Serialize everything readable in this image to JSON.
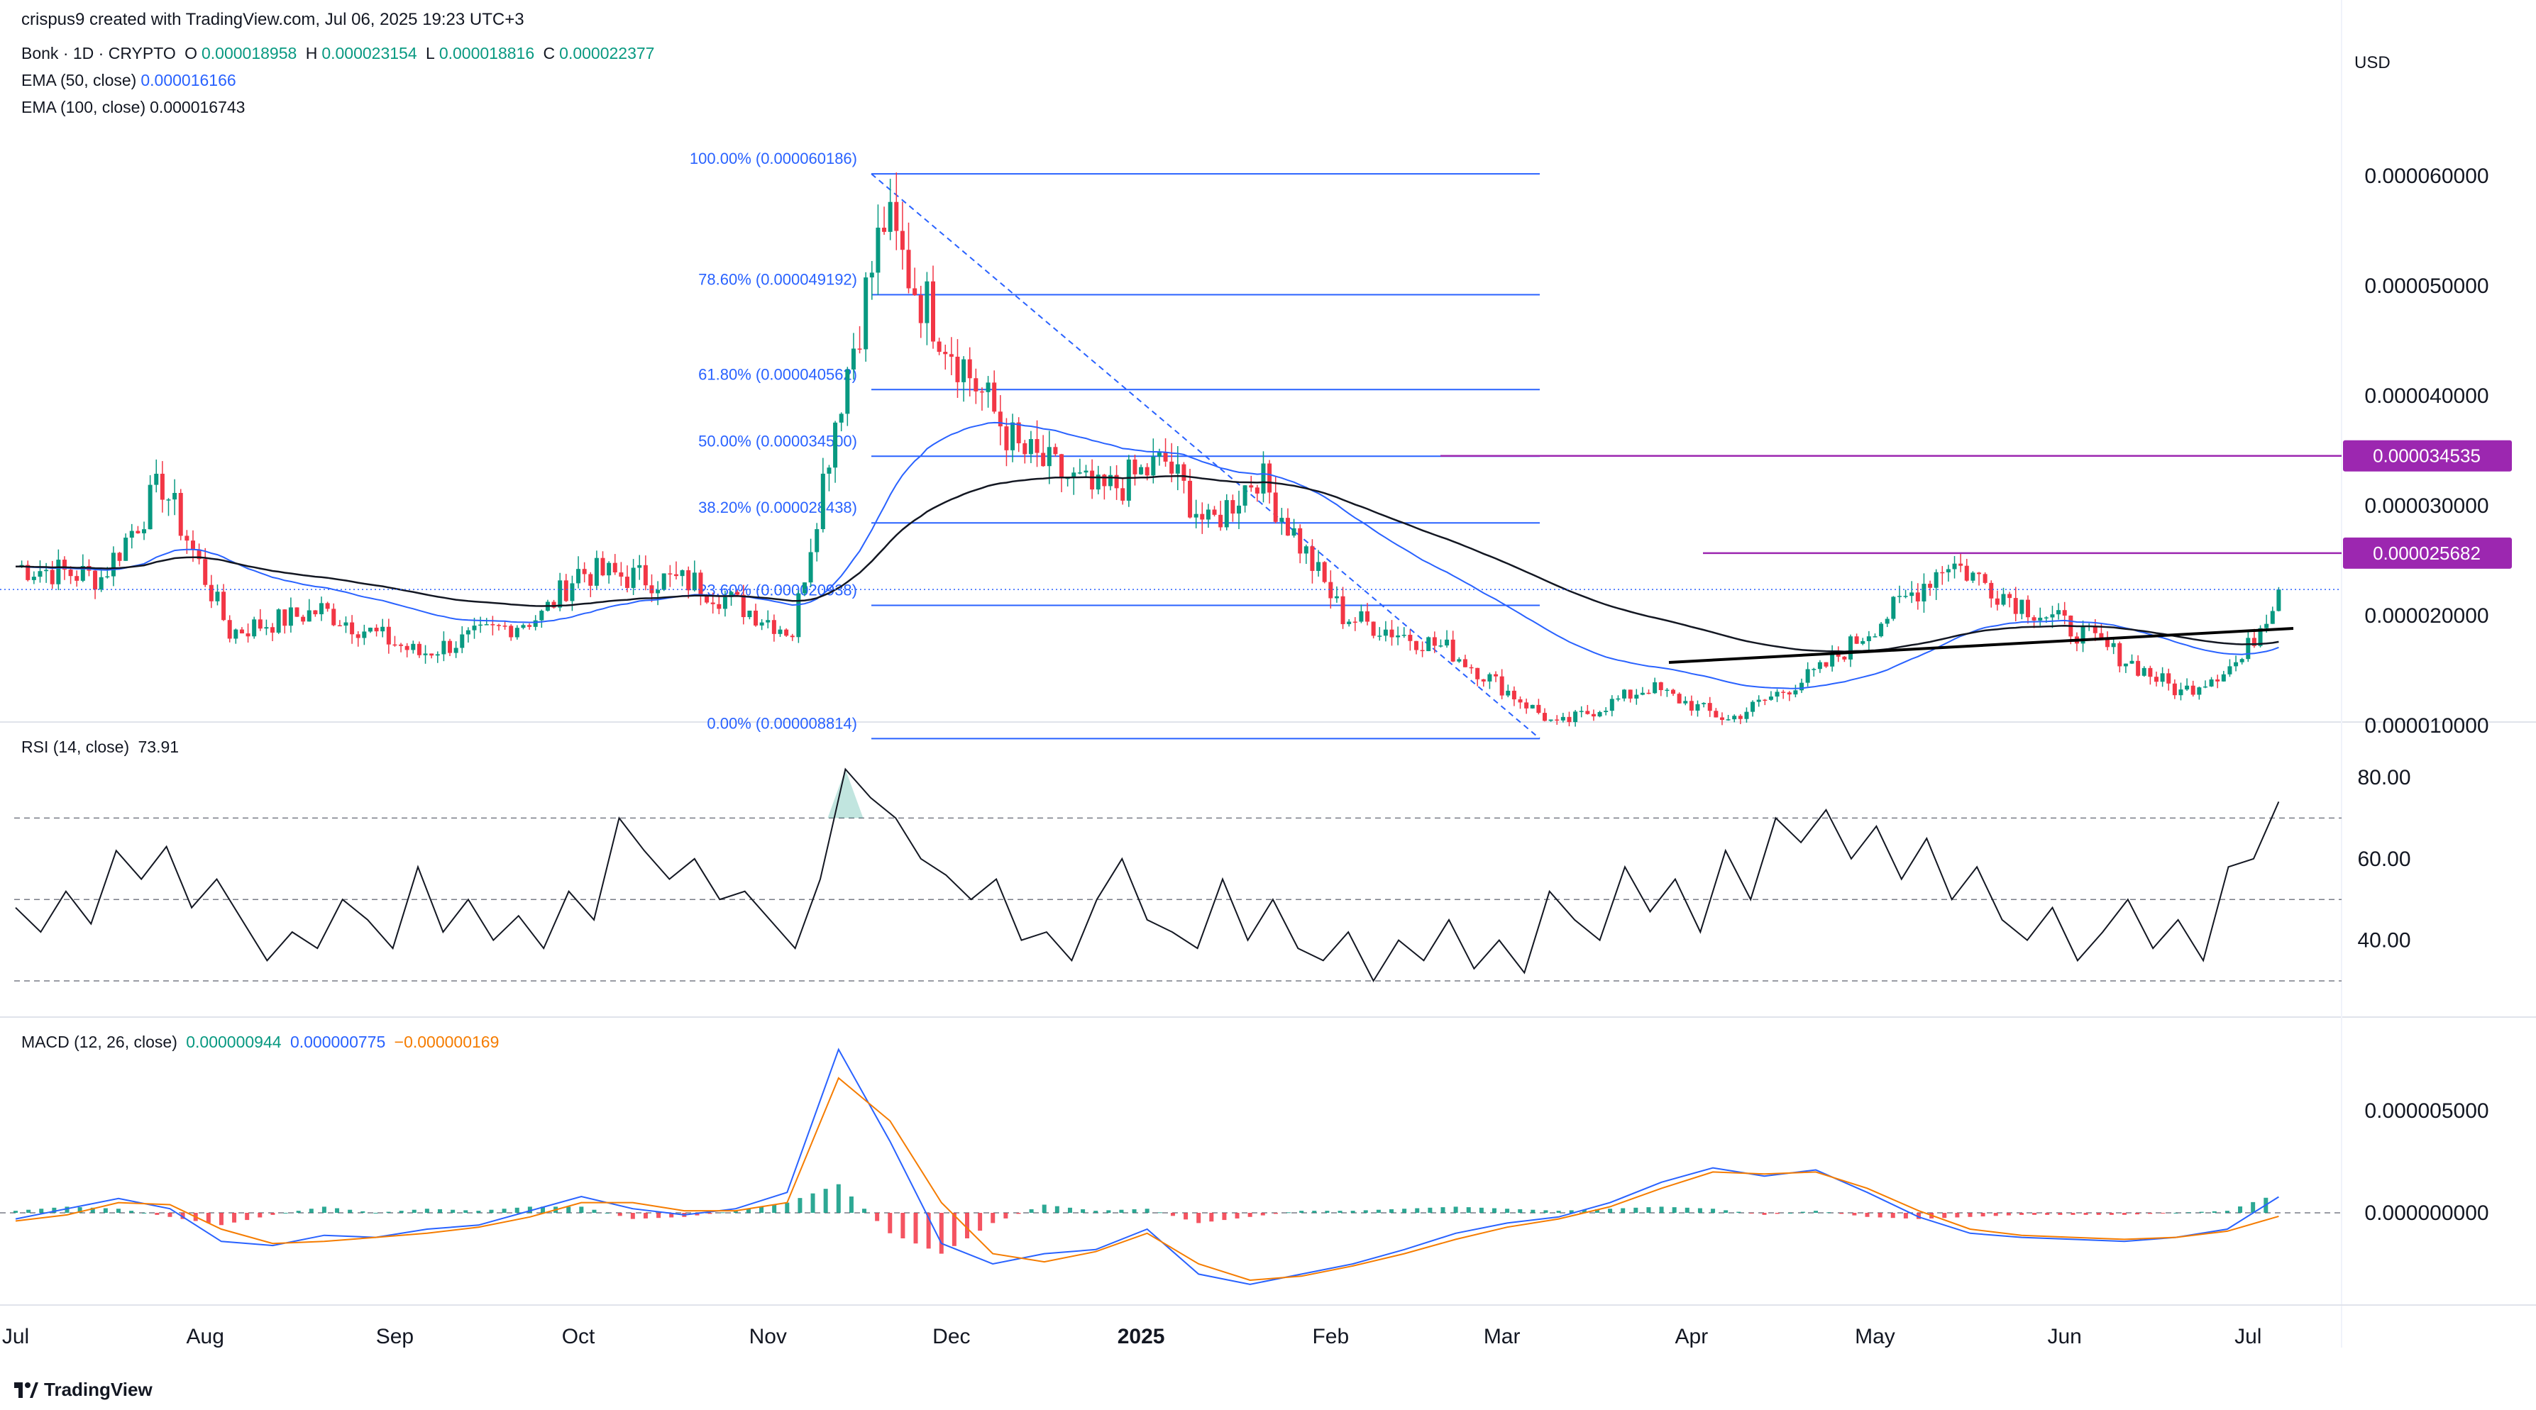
{
  "header": {
    "created_by": "crispus9 created with TradingView.com, Jul 06, 2025 19:23 UTC+3",
    "symbol": "Bonk · 1D · CRYPTO",
    "o_label": "O",
    "o_value": "0.000018958",
    "h_label": "H",
    "h_value": "0.000023154",
    "l_label": "L",
    "l_value": "0.000018816",
    "c_label": "C",
    "c_value": "0.000022377",
    "ema50_label": "EMA (50, close)",
    "ema50_value": "0.000016166",
    "ema100_label": "EMA (100, close)",
    "ema100_value": "0.000016743"
  },
  "rsi_legend": {
    "label": "RSI (14, close)",
    "value": "73.91"
  },
  "macd_legend": {
    "label": "MACD (12, 26, close)",
    "hist": "0.000000944",
    "macd": "0.000000775",
    "signal": "−0.000000169"
  },
  "currency": "USD",
  "footer": {
    "brand": "TradingView"
  },
  "colors": {
    "up": "#089981",
    "down": "#f23645",
    "ema50": "#2962ff",
    "ema100": "#131722",
    "fib": "#2962ff",
    "level_lines": "#9c27b0",
    "macd_signal": "#f57c00"
  },
  "chart_data": [
    {
      "type": "candlestick",
      "title": "Bonk · 1D · CRYPTO",
      "y_ticks": [
        "0.000060000",
        "0.000050000",
        "0.000040000",
        "0.000030000",
        "0.000020000",
        "0.000010000"
      ],
      "y_tick_values": [
        6e-05,
        5e-05,
        4e-05,
        3e-05,
        2e-05,
        1e-05
      ],
      "x_labels": [
        "Jul",
        "Aug",
        "Sep",
        "Oct",
        "Nov",
        "Dec",
        "2025",
        "Feb",
        "Mar",
        "Apr",
        "May",
        "Jun",
        "Jul"
      ],
      "approx_close_path": [
        {
          "date": "2024-07-01",
          "close": 2.45e-05
        },
        {
          "date": "2024-07-15",
          "close": 2.35e-05
        },
        {
          "date": "2024-07-25",
          "close": 3.2e-05
        },
        {
          "date": "2024-08-05",
          "close": 1.85e-05
        },
        {
          "date": "2024-08-20",
          "close": 2.05e-05
        },
        {
          "date": "2024-09-05",
          "close": 1.65e-05
        },
        {
          "date": "2024-09-25",
          "close": 2e-05
        },
        {
          "date": "2024-10-01",
          "close": 2.4e-05
        },
        {
          "date": "2024-10-20",
          "close": 2.3e-05
        },
        {
          "date": "2024-11-05",
          "close": 1.85e-05
        },
        {
          "date": "2024-11-12",
          "close": 3.8e-05
        },
        {
          "date": "2024-11-20",
          "close": 5.6e-05
        },
        {
          "date": "2024-11-25",
          "close": 5e-05
        },
        {
          "date": "2024-12-05",
          "close": 4.1e-05
        },
        {
          "date": "2024-12-12",
          "close": 3.5e-05
        },
        {
          "date": "2024-12-25",
          "close": 3.1e-05
        },
        {
          "date": "2025-01-05",
          "close": 3.4e-05
        },
        {
          "date": "2025-01-12",
          "close": 2.8e-05
        },
        {
          "date": "2025-01-20",
          "close": 3.3e-05
        },
        {
          "date": "2025-02-03",
          "close": 2e-05
        },
        {
          "date": "2025-02-20",
          "close": 1.7e-05
        },
        {
          "date": "2025-03-10",
          "close": 1e-05
        },
        {
          "date": "2025-03-25",
          "close": 1.35e-05
        },
        {
          "date": "2025-04-07",
          "close": 1.05e-05
        },
        {
          "date": "2025-04-22",
          "close": 1.5e-05
        },
        {
          "date": "2025-05-05",
          "close": 2.1e-05
        },
        {
          "date": "2025-05-13",
          "close": 2.5e-05
        },
        {
          "date": "2025-05-22",
          "close": 2.2e-05
        },
        {
          "date": "2025-06-05",
          "close": 1.8e-05
        },
        {
          "date": "2025-06-20",
          "close": 1.3e-05
        },
        {
          "date": "2025-06-30",
          "close": 1.6e-05
        },
        {
          "date": "2025-07-06",
          "close": 2.24e-05
        }
      ],
      "fibonacci": [
        {
          "label": "100.00% (0.000060186)",
          "value": 6.0186e-05
        },
        {
          "label": "78.60% (0.000049192)",
          "value": 4.9192e-05
        },
        {
          "label": "61.80% (0.000040562)",
          "value": 4.0562e-05
        },
        {
          "label": "50.00% (0.000034500)",
          "value": 3.45e-05
        },
        {
          "label": "38.20% (0.000028438)",
          "value": 2.8438e-05
        },
        {
          "label": "23.60% (0.000020938)",
          "value": 2.0938e-05
        },
        {
          "label": "0.00% (0.000008814)",
          "value": 8.814e-06
        }
      ],
      "levels": [
        {
          "label": "0.000034535",
          "value": 3.4535e-05
        },
        {
          "label": "0.000025682",
          "value": 2.5682e-05
        }
      ],
      "last_price": 2.2377e-05,
      "indicators": [
        "EMA (50, close)",
        "EMA (100, close)"
      ]
    },
    {
      "type": "line",
      "title": "RSI (14, close)",
      "y_ticks": [
        "80.00",
        "60.00",
        "40.00"
      ],
      "y_tick_values": [
        80,
        60,
        40
      ],
      "bands": [
        70,
        50,
        30
      ],
      "approx_values": [
        48,
        42,
        52,
        44,
        62,
        55,
        63,
        48,
        55,
        45,
        35,
        42,
        38,
        50,
        45,
        38,
        58,
        42,
        50,
        40,
        46,
        38,
        52,
        45,
        70,
        62,
        55,
        60,
        50,
        52,
        45,
        38,
        55,
        82,
        75,
        70,
        60,
        56,
        50,
        55,
        40,
        42,
        35,
        50,
        60,
        45,
        42,
        38,
        55,
        40,
        50,
        38,
        35,
        42,
        30,
        40,
        35,
        45,
        33,
        40,
        32,
        52,
        45,
        40,
        58,
        47,
        55,
        42,
        62,
        50,
        70,
        64,
        72,
        60,
        68,
        55,
        65,
        50,
        58,
        45,
        40,
        48,
        35,
        42,
        50,
        38,
        45,
        35,
        58,
        60,
        74
      ]
    },
    {
      "type": "line+histogram",
      "title": "MACD (12, 26, close)",
      "y_ticks": [
        "0.000005000",
        "0.000000000"
      ],
      "y_tick_values": [
        5e-06,
        0
      ],
      "series": [
        {
          "name": "MACD",
          "approx_values": [
            -3e-07,
            2e-07,
            7e-07,
            2e-07,
            -1.4e-06,
            -1.6e-06,
            -1.1e-06,
            -1.2e-06,
            -8e-07,
            -6e-07,
            1e-07,
            8e-07,
            2e-07,
            -1e-07,
            2e-07,
            1e-06,
            8e-06,
            3.5e-06,
            -1.5e-06,
            -2.5e-06,
            -2e-06,
            -1.8e-06,
            -8e-07,
            -3e-06,
            -3.5e-06,
            -3e-06,
            -2.5e-06,
            -1.8e-06,
            -1e-06,
            -5e-07,
            -2e-07,
            5e-07,
            1.5e-06,
            2.2e-06,
            1.8e-06,
            2.1e-06,
            1e-06,
            -2e-07,
            -1e-06,
            -1.2e-06,
            -1.3e-06,
            -1.4e-06,
            -1.2e-06,
            -8e-07,
            7.8e-07
          ]
        },
        {
          "name": "Signal",
          "approx_values": [
            -4e-07,
            -1e-07,
            5e-07,
            4e-07,
            -8e-07,
            -1.5e-06,
            -1.4e-06,
            -1.2e-06,
            -1e-06,
            -7e-07,
            -2e-07,
            5e-07,
            5e-07,
            1e-07,
            1e-07,
            5e-07,
            6.6e-06,
            4.5e-06,
            5e-07,
            -2e-06,
            -2.4e-06,
            -1.9e-06,
            -1e-06,
            -2.5e-06,
            -3.3e-06,
            -3.1e-06,
            -2.6e-06,
            -2e-06,
            -1.3e-06,
            -7e-07,
            -3e-07,
            3e-07,
            1.2e-06,
            2e-06,
            1.9e-06,
            2e-06,
            1.2e-06,
            1e-07,
            -8e-07,
            -1.1e-06,
            -1.2e-06,
            -1.3e-06,
            -1.2e-06,
            -9e-07,
            -1.7e-07
          ]
        }
      ]
    }
  ]
}
